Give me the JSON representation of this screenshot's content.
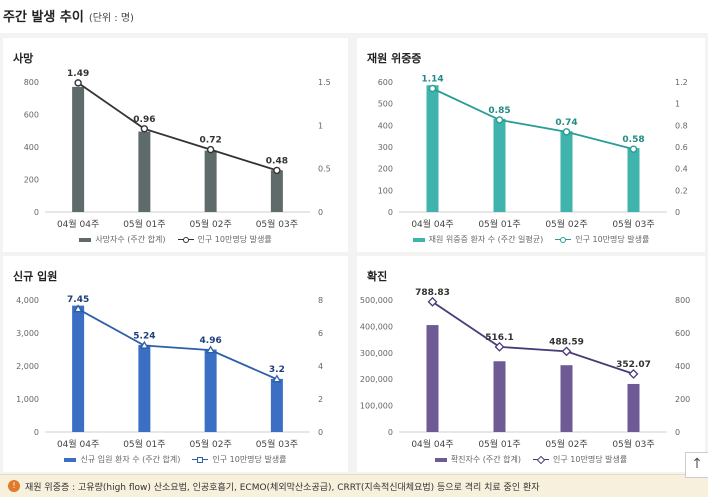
{
  "header": {
    "title": "주간 발생 추이",
    "unit": "(단위 : 명)"
  },
  "footnote": {
    "icon": "info-icon",
    "text": "재원 위중증 : 고유량(high flow) 산소요법, 인공호흡기, ECMO(체외막산소공급), CRRT(지속적신대체요법) 등으로 격리 치료 중인 환자"
  },
  "scroll_top_icon": "arrow-up-icon",
  "chart_data": [
    {
      "type": "bar",
      "title": "사망",
      "categories": [
        "04월 04주",
        "05월 01주",
        "05월 02주",
        "05월 03주"
      ],
      "bar": {
        "name": "사망자수 (주간 합계)",
        "values": [
          770,
          495,
          378,
          257
        ],
        "color": "#5f6b6b"
      },
      "line": {
        "name": "인구 10만명당 발생률",
        "values": [
          1.49,
          0.96,
          0.72,
          0.48
        ],
        "labels": [
          "1.49",
          "0.96",
          "0.72",
          "0.48"
        ],
        "color": "#333333",
        "marker": "circle",
        "label_color": "#333333"
      },
      "left_axis": {
        "min": 0,
        "max": 800,
        "ticks": [
          "0",
          "200",
          "400",
          "600",
          "800"
        ]
      },
      "right_axis": {
        "min": 0,
        "max": 1.5,
        "ticks": [
          "0",
          "0.5",
          "1",
          "1.5"
        ]
      }
    },
    {
      "type": "bar",
      "title": "재원 위중증",
      "categories": [
        "04월 04주",
        "05월 01주",
        "05월 02주",
        "05월 03주"
      ],
      "bar": {
        "name": "재원 위중증 환자 수 (주간 일평균)",
        "values": [
          585,
          430,
          373,
          295
        ],
        "color": "#3fb3ac"
      },
      "line": {
        "name": "인구 10만명당 발생률",
        "values": [
          1.14,
          0.85,
          0.74,
          0.58
        ],
        "labels": [
          "1.14",
          "0.85",
          "0.74",
          "0.58"
        ],
        "color": "#2a9d96",
        "marker": "circle",
        "label_color": "#238b85"
      },
      "left_axis": {
        "min": 0,
        "max": 600,
        "ticks": [
          "0",
          "100",
          "200",
          "300",
          "400",
          "500",
          "600"
        ]
      },
      "right_axis": {
        "min": 0,
        "max": 1.2,
        "ticks": [
          "0",
          "0.2",
          "0.4",
          "0.6",
          "0.8",
          "1",
          "1.2"
        ]
      }
    },
    {
      "type": "bar",
      "title": "신규 입원",
      "categories": [
        "04월 04주",
        "05월 01주",
        "05월 02주",
        "05월 03주"
      ],
      "bar": {
        "name": "신규 입원 환자 수 (주간 합계)",
        "values": [
          3830,
          2640,
          2500,
          1610
        ],
        "color": "#3a6fc4"
      },
      "line": {
        "name": "인구 10만명당 발생률",
        "values": [
          7.45,
          5.24,
          4.96,
          3.2
        ],
        "labels": [
          "7.45",
          "5.24",
          "4.96",
          "3.2"
        ],
        "color": "#2d5ea8",
        "marker": "triangle",
        "label_color": "#1f3f7a"
      },
      "left_axis": {
        "min": 0,
        "max": 4000,
        "ticks": [
          "0",
          "1,000",
          "2,000",
          "3,000",
          "4,000"
        ]
      },
      "right_axis": {
        "min": 0,
        "max": 8,
        "ticks": [
          "0",
          "2",
          "4",
          "6",
          "8"
        ]
      }
    },
    {
      "type": "bar",
      "title": "확진",
      "categories": [
        "04월 04주",
        "05월 01주",
        "05월 02주",
        "05월 03주"
      ],
      "bar": {
        "name": "확진자수 (주간 합계)",
        "values": [
          405000,
          268000,
          253000,
          182000
        ],
        "color": "#6e5a94"
      },
      "line": {
        "name": "인구 10만명당 발생률",
        "values": [
          788.83,
          516.1,
          488.59,
          352.07
        ],
        "labels": [
          "788.83",
          "516.1",
          "488.59",
          "352.07"
        ],
        "color": "#4a3a78",
        "marker": "diamond",
        "label_color": "#333333"
      },
      "left_axis": {
        "min": 0,
        "max": 500000,
        "ticks": [
          "0",
          "100,000",
          "200,000",
          "300,000",
          "400,000",
          "500,000"
        ]
      },
      "right_axis": {
        "min": 0,
        "max": 800,
        "ticks": [
          "0",
          "200",
          "400",
          "600",
          "800"
        ]
      }
    }
  ]
}
